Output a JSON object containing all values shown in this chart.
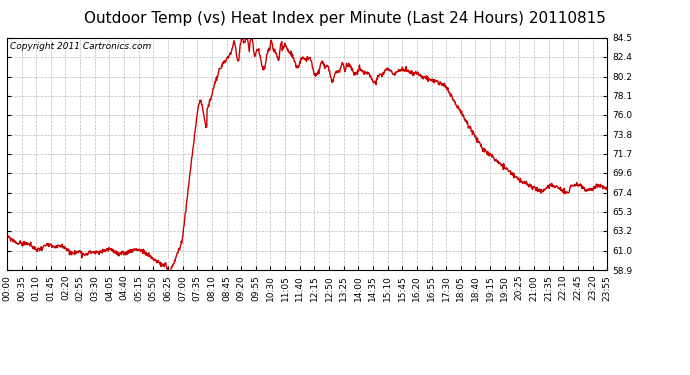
{
  "title": "Outdoor Temp (vs) Heat Index per Minute (Last 24 Hours) 20110815",
  "copyright_text": "Copyright 2011 Cartronics.com",
  "line_color": "#cc0000",
  "background_color": "#ffffff",
  "plot_bg_color": "#ffffff",
  "grid_color": "#aaaaaa",
  "yticks": [
    58.9,
    61.0,
    63.2,
    65.3,
    67.4,
    69.6,
    71.7,
    73.8,
    76.0,
    78.1,
    80.2,
    82.4,
    84.5
  ],
  "ymin": 58.9,
  "ymax": 84.5,
  "xtick_labels": [
    "00:00",
    "00:35",
    "01:10",
    "01:45",
    "02:20",
    "02:55",
    "03:30",
    "04:05",
    "04:40",
    "05:15",
    "05:50",
    "06:25",
    "07:00",
    "07:35",
    "08:10",
    "08:45",
    "09:20",
    "09:55",
    "10:30",
    "11:05",
    "11:40",
    "12:15",
    "12:50",
    "13:25",
    "14:00",
    "14:35",
    "15:10",
    "15:45",
    "16:20",
    "16:55",
    "17:30",
    "18:05",
    "18:40",
    "19:15",
    "19:50",
    "20:25",
    "21:00",
    "21:35",
    "22:10",
    "22:45",
    "23:20",
    "23:55"
  ],
  "title_fontsize": 11,
  "copyright_fontsize": 6.5,
  "tick_fontsize": 6.5,
  "line_width": 1.0
}
